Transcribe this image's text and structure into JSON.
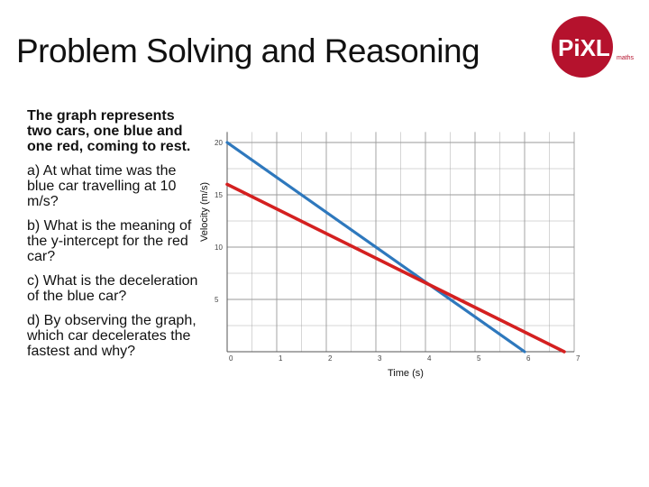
{
  "header": {
    "title": "Problem Solving and Reasoning",
    "logo_text": "PiXL",
    "logo_subtext": "maths"
  },
  "questions": {
    "intro": "The graph represents two cars, one blue and one red, coming to rest.",
    "a": "a) At what time was the blue car travelling at 10 m/s?",
    "b": "b) What is the meaning of the y-intercept for the red car?",
    "c": "c) What is the deceleration of the blue car?",
    "d": "d) By observing the graph, which car decelerates the fastest and why?"
  },
  "colors": {
    "blue_line": "#2e78bd",
    "red_line": "#d42020",
    "logo_red": "#b5122d",
    "grid": "#9a9a9a"
  },
  "chart_data": {
    "type": "line",
    "xlabel": "Time (s)",
    "ylabel": "Velocity (m/s)",
    "xlim": [
      0,
      7
    ],
    "ylim": [
      0,
      20
    ],
    "xticks": [
      0,
      1,
      2,
      3,
      4,
      5,
      6,
      7
    ],
    "yticks": [
      5,
      10,
      15,
      20
    ],
    "grid": true,
    "series": [
      {
        "color": "#2e78bd",
        "x": [
          0,
          6
        ],
        "y": [
          20,
          0
        ]
      },
      {
        "color": "#d42020",
        "x": [
          0,
          6.8
        ],
        "y": [
          16,
          0
        ]
      }
    ]
  }
}
